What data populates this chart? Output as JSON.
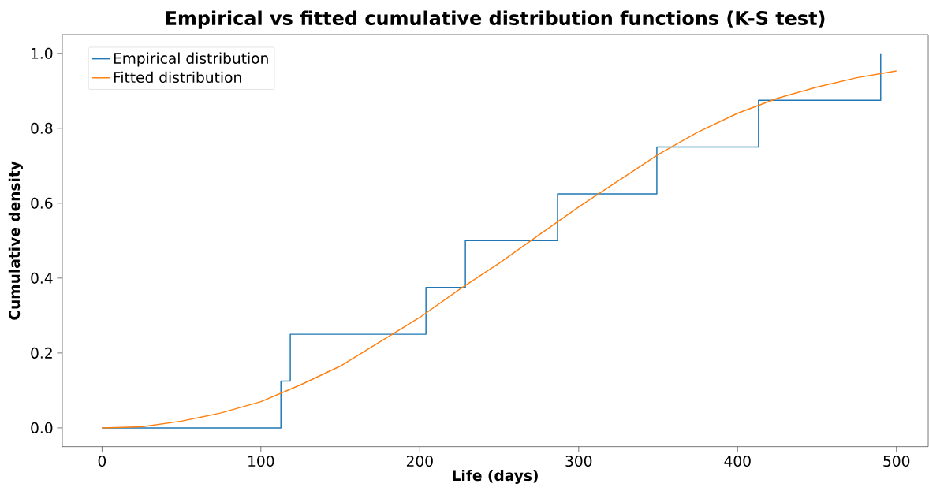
{
  "chart_data": {
    "type": "line",
    "title": "Empirical vs fitted cumulative distribution functions (K-S test)",
    "xlabel": "Life (days)",
    "ylabel": "Cumulative density",
    "xlim": [
      -25,
      520
    ],
    "ylim": [
      -0.05,
      1.05
    ],
    "xticks": [
      0,
      100,
      200,
      300,
      400,
      500
    ],
    "yticks": [
      {
        "value": 0,
        "label": "0.0"
      },
      {
        "value": 0.2,
        "label": "0.2"
      },
      {
        "value": 0.4,
        "label": "0.4"
      },
      {
        "value": 0.6,
        "label": "0.6"
      },
      {
        "value": 0.8,
        "label": "0.8"
      },
      {
        "value": 1,
        "label": "1.0"
      }
    ],
    "legend": "top left",
    "grid": false,
    "marker": "none",
    "line_style": "solid",
    "series": [
      {
        "name": "Empirical distribution",
        "type": "step",
        "color": "#1f77b4",
        "x": [
          0,
          112.6,
          118.5,
          203.9,
          228.7,
          286.7,
          349.2,
          413.2,
          490.1
        ],
        "values": [
          0,
          0.125,
          0.25,
          0.375,
          0.5,
          0.625,
          0.75,
          0.875,
          1.0
        ]
      },
      {
        "name": "Fitted distribution",
        "type": "line",
        "color": "#ff7f0e",
        "x": [
          0,
          25,
          50,
          75,
          100,
          125,
          150,
          175,
          200,
          225,
          250,
          275,
          300,
          325,
          350,
          375,
          400,
          425,
          450,
          475,
          500
        ],
        "values": [
          0,
          0.003,
          0.018,
          0.04,
          0.07,
          0.115,
          0.165,
          0.23,
          0.295,
          0.37,
          0.44,
          0.515,
          0.59,
          0.66,
          0.73,
          0.79,
          0.84,
          0.88,
          0.91,
          0.935,
          0.953
        ]
      }
    ]
  }
}
